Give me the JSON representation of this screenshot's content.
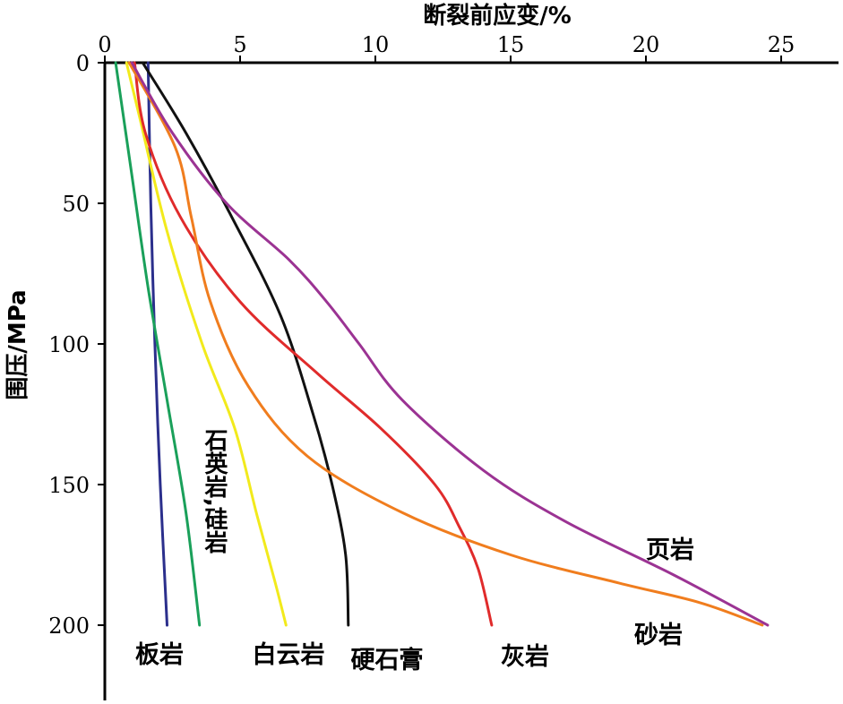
{
  "chart_data": {
    "type": "line",
    "title": "",
    "xlabel": "断裂前应变/%",
    "ylabel": "围压/MPa",
    "x_axis_position": "top",
    "y_axis_inverted": true,
    "xlim": [
      0,
      27
    ],
    "ylim": [
      0,
      220
    ],
    "xticks": [
      "0",
      "5",
      "10",
      "15",
      "20",
      "25"
    ],
    "yticks": [
      "0",
      "50",
      "100",
      "150",
      "200"
    ],
    "grid": false,
    "legend": "inline labels",
    "series": [
      {
        "name": "板岩",
        "color": "#2b2f8c",
        "points": [
          [
            1.6,
            0
          ],
          [
            1.7,
            50
          ],
          [
            1.85,
            100
          ],
          [
            2.05,
            150
          ],
          [
            2.3,
            200
          ]
        ]
      },
      {
        "name": "石英岩,硅岩",
        "color": "#1aa05a",
        "points": [
          [
            0.4,
            0
          ],
          [
            1.0,
            40
          ],
          [
            1.6,
            80
          ],
          [
            2.3,
            120
          ],
          [
            3.0,
            160
          ],
          [
            3.5,
            200
          ]
        ]
      },
      {
        "name": "白云岩",
        "color": "#f2ea1c",
        "points": [
          [
            0.8,
            0
          ],
          [
            1.3,
            20
          ],
          [
            2.3,
            60
          ],
          [
            3.6,
            100
          ],
          [
            4.8,
            130
          ],
          [
            5.6,
            160
          ],
          [
            6.3,
            185
          ],
          [
            6.7,
            200
          ]
        ]
      },
      {
        "name": "硬石膏",
        "color": "#111111",
        "points": [
          [
            1.4,
            0
          ],
          [
            3.0,
            25
          ],
          [
            4.7,
            55
          ],
          [
            6.5,
            90
          ],
          [
            7.7,
            125
          ],
          [
            8.4,
            150
          ],
          [
            8.9,
            175
          ],
          [
            9.0,
            200
          ]
        ]
      },
      {
        "name": "灰岩",
        "color": "#e02b2b",
        "points": [
          [
            1.1,
            0
          ],
          [
            1.5,
            25
          ],
          [
            2.8,
            55
          ],
          [
            5.0,
            85
          ],
          [
            7.8,
            110
          ],
          [
            10.2,
            130
          ],
          [
            12.2,
            150
          ],
          [
            13.1,
            165
          ],
          [
            13.8,
            180
          ],
          [
            14.3,
            200
          ]
        ]
      },
      {
        "name": "砂岩",
        "color": "#f07d1e",
        "points": [
          [
            0.9,
            0
          ],
          [
            2.6,
            30
          ],
          [
            3.2,
            55
          ],
          [
            3.9,
            85
          ],
          [
            5.3,
            115
          ],
          [
            7.5,
            140
          ],
          [
            11.0,
            160
          ],
          [
            15.0,
            175
          ],
          [
            19.0,
            185
          ],
          [
            22.0,
            192
          ],
          [
            24.3,
            200
          ]
        ]
      },
      {
        "name": "页岩",
        "color": "#9b3393",
        "points": [
          [
            1.0,
            0
          ],
          [
            2.5,
            25
          ],
          [
            4.5,
            50
          ],
          [
            6.8,
            70
          ],
          [
            8.2,
            85
          ],
          [
            9.4,
            100
          ],
          [
            11.0,
            120
          ],
          [
            14.0,
            145
          ],
          [
            17.0,
            163
          ],
          [
            21.0,
            182
          ],
          [
            24.5,
            200
          ]
        ]
      }
    ]
  }
}
